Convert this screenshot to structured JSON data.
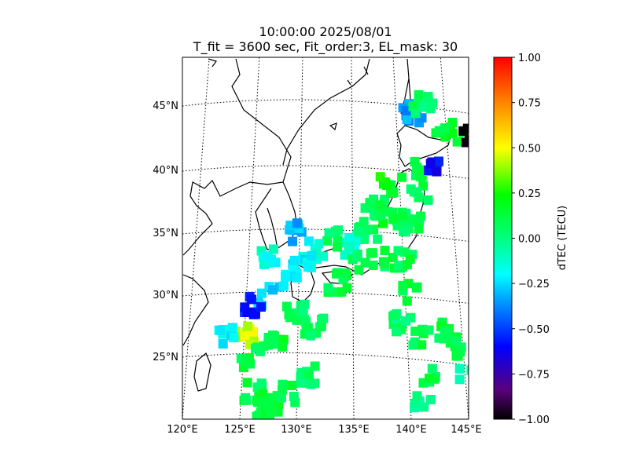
{
  "figure": {
    "title_line1": "10:00:00 2025/08/01",
    "title_line2": "T_fit = 3600 sec, Fit_order:3, EL_mask: 30"
  },
  "chart_data": {
    "type": "heatmap",
    "title": "10:00:00 2025/08/01",
    "subtitle": "T_fit = 3600 sec, Fit_order:3, EL_mask: 30",
    "projection": "conic map of Japan region",
    "lon_range": [
      120,
      145
    ],
    "lat_range": [
      20,
      48
    ],
    "lon_ticks": [
      "120°E",
      "125°E",
      "130°E",
      "135°E",
      "140°E",
      "145°E"
    ],
    "lat_ticks": [
      "25°N",
      "30°N",
      "35°N",
      "40°N",
      "45°N"
    ],
    "grid": "dotted meridians and parallels",
    "colorbar": {
      "label": "dTEC (TECU)",
      "min": -1.0,
      "max": 1.0,
      "ticks": [
        "1.00",
        "0.75",
        "0.50",
        "0.25",
        "0.00",
        "−0.25",
        "−0.50",
        "−0.75",
        "−1.00"
      ],
      "colors": [
        "#000000",
        "#5a007a",
        "#0000ff",
        "#00c0ff",
        "#00ffff",
        "#00ff80",
        "#00ff00",
        "#c0ff00",
        "#ffff00",
        "#ff8000",
        "#ff0000"
      ]
    },
    "points": [
      {
        "lon": 136.5,
        "lat": 37.0,
        "value": 0.1
      },
      {
        "lon": 137.5,
        "lat": 36.5,
        "value": 0.15
      },
      {
        "lon": 138.5,
        "lat": 35.8,
        "value": 0.1
      },
      {
        "lon": 139.5,
        "lat": 36.0,
        "value": 0.08
      },
      {
        "lon": 140.3,
        "lat": 38.5,
        "value": 0.1
      },
      {
        "lon": 140.5,
        "lat": 40.5,
        "value": 0.12
      },
      {
        "lon": 141.2,
        "lat": 43.0,
        "value": 0.1
      },
      {
        "lon": 142.5,
        "lat": 43.5,
        "value": 0.15
      },
      {
        "lon": 143.8,
        "lat": 43.3,
        "value": -1.0
      },
      {
        "lon": 141.6,
        "lat": 41.0,
        "value": -0.6
      },
      {
        "lon": 139.2,
        "lat": 44.8,
        "value": -0.35
      },
      {
        "lon": 140.0,
        "lat": 45.5,
        "value": 0.05
      },
      {
        "lon": 137.8,
        "lat": 39.0,
        "value": 0.2
      },
      {
        "lon": 136.0,
        "lat": 35.2,
        "value": 0.05
      },
      {
        "lon": 134.5,
        "lat": 34.0,
        "value": -0.1
      },
      {
        "lon": 133.0,
        "lat": 34.5,
        "value": 0.05
      },
      {
        "lon": 131.5,
        "lat": 33.5,
        "value": -0.15
      },
      {
        "lon": 130.5,
        "lat": 32.5,
        "value": -0.2
      },
      {
        "lon": 129.5,
        "lat": 31.0,
        "value": -0.25
      },
      {
        "lon": 128.0,
        "lat": 33.2,
        "value": -0.15
      },
      {
        "lon": 129.8,
        "lat": 35.0,
        "value": -0.3
      },
      {
        "lon": 127.5,
        "lat": 30.0,
        "value": -0.3
      },
      {
        "lon": 126.2,
        "lat": 29.4,
        "value": -0.55
      },
      {
        "lon": 125.5,
        "lat": 27.0,
        "value": 0.45
      },
      {
        "lon": 124.0,
        "lat": 27.0,
        "value": -0.2
      },
      {
        "lon": 126.0,
        "lat": 25.2,
        "value": 0.1
      },
      {
        "lon": 128.0,
        "lat": 26.5,
        "value": 0.12
      },
      {
        "lon": 130.0,
        "lat": 28.5,
        "value": 0.08
      },
      {
        "lon": 131.5,
        "lat": 27.5,
        "value": 0.05
      },
      {
        "lon": 133.5,
        "lat": 31.0,
        "value": 0.1
      },
      {
        "lon": 135.0,
        "lat": 32.5,
        "value": 0.05
      },
      {
        "lon": 137.0,
        "lat": 33.0,
        "value": 0.08
      },
      {
        "lon": 139.0,
        "lat": 33.0,
        "value": 0.1
      },
      {
        "lon": 139.5,
        "lat": 30.5,
        "value": 0.1
      },
      {
        "lon": 139.0,
        "lat": 28.0,
        "value": 0.05
      },
      {
        "lon": 140.8,
        "lat": 26.8,
        "value": 0.1
      },
      {
        "lon": 143.0,
        "lat": 27.5,
        "value": 0.12
      },
      {
        "lon": 143.5,
        "lat": 26.5,
        "value": 0.1
      },
      {
        "lon": 144.8,
        "lat": 24.5,
        "value": -0.05
      },
      {
        "lon": 141.5,
        "lat": 24.0,
        "value": 0.1
      },
      {
        "lon": 141.0,
        "lat": 22.0,
        "value": 0.0
      },
      {
        "lon": 126.0,
        "lat": 22.5,
        "value": 0.1
      },
      {
        "lon": 127.5,
        "lat": 21.5,
        "value": 0.15
      },
      {
        "lon": 129.0,
        "lat": 22.2,
        "value": 0.1
      },
      {
        "lon": 131.0,
        "lat": 23.5,
        "value": 0.05
      },
      {
        "lon": 127.0,
        "lat": 20.8,
        "value": 0.1
      }
    ]
  }
}
